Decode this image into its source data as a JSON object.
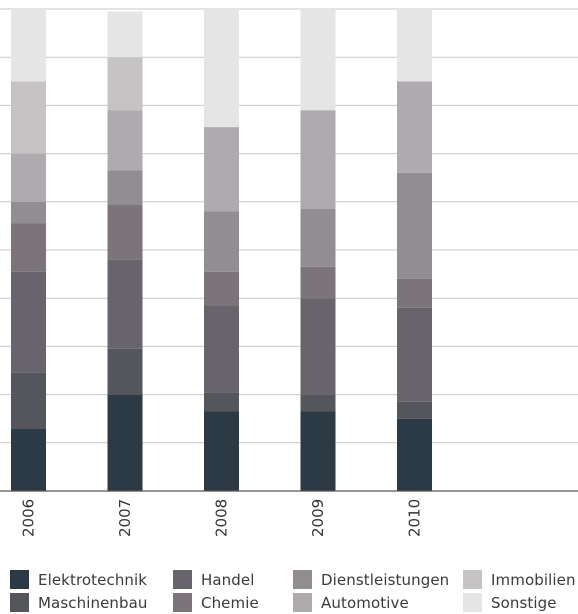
{
  "chart_data": {
    "type": "bar",
    "stacked": true,
    "orientation": "vertical",
    "categories": [
      "2006",
      "2007",
      "2008",
      "2009",
      "2010"
    ],
    "ylim": [
      0,
      100
    ],
    "y_unit": "%",
    "y_axis_labels_visible": false,
    "grid": true,
    "legend_position": "bottom",
    "series": [
      {
        "name": "Elektrotechnik",
        "color": "#2b3a44",
        "values": [
          13,
          20,
          16.5,
          16.5,
          15
        ]
      },
      {
        "name": "Maschinenbau",
        "color": "#54565b",
        "values": [
          11.5,
          9.5,
          4,
          3.5,
          3.5
        ]
      },
      {
        "name": "Handel",
        "color": "#67646b",
        "values": [
          21,
          18.5,
          18,
          20,
          19.5
        ]
      },
      {
        "name": "Chemie",
        "color": "#7b7579",
        "values": [
          10,
          11.5,
          7,
          6.5,
          6
        ]
      },
      {
        "name": "Dienstleistungen",
        "color": "#928d91",
        "values": [
          4.5,
          7,
          12.5,
          12,
          22
        ]
      },
      {
        "name": "Automotive",
        "color": "#aeaaad",
        "values": [
          10,
          12.5,
          17.5,
          20.5,
          19
        ]
      },
      {
        "name": "Immobilien",
        "color": "#c6c3c5",
        "values": [
          15,
          11,
          0,
          0,
          0
        ]
      },
      {
        "name": "Sonstige",
        "color": "#e5e5e5",
        "values": [
          15,
          9.5,
          24.5,
          21,
          15
        ]
      }
    ]
  }
}
